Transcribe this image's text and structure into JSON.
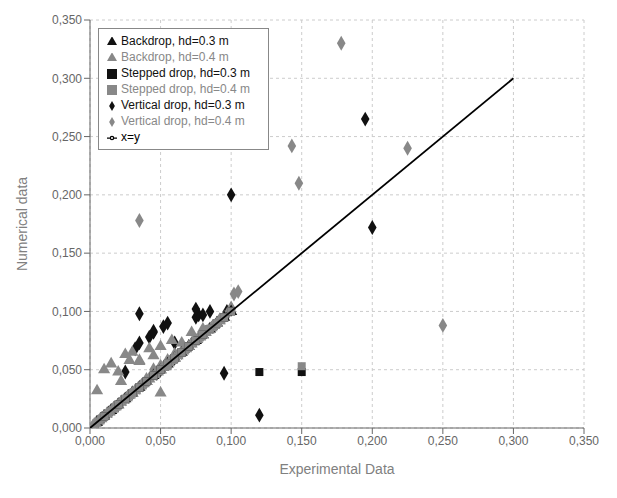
{
  "chart_data": {
    "type": "scatter",
    "xlabel": "Experimental Data",
    "ylabel": "Numerical data",
    "xlim": [
      0,
      0.35
    ],
    "ylim": [
      0,
      0.35
    ],
    "xticks": [
      {
        "value": 0.0,
        "label": "0,000"
      },
      {
        "value": 0.05,
        "label": "0,050"
      },
      {
        "value": 0.1,
        "label": "0,100"
      },
      {
        "value": 0.15,
        "label": "0,150"
      },
      {
        "value": 0.2,
        "label": "0,200"
      },
      {
        "value": 0.25,
        "label": "0,250"
      },
      {
        "value": 0.3,
        "label": "0,300"
      },
      {
        "value": 0.35,
        "label": "0,350"
      }
    ],
    "yticks": [
      {
        "value": 0.0,
        "label": "0,000"
      },
      {
        "value": 0.05,
        "label": "0,050"
      },
      {
        "value": 0.1,
        "label": "0,100"
      },
      {
        "value": 0.15,
        "label": "0,150"
      },
      {
        "value": 0.2,
        "label": "0,200"
      },
      {
        "value": 0.25,
        "label": "0,250"
      },
      {
        "value": 0.3,
        "label": "0,300"
      },
      {
        "value": 0.35,
        "label": "0,350"
      }
    ],
    "grid": true,
    "legend": "upper left",
    "series": [
      {
        "name": "Vertical drop, hd=0.3 m",
        "type": "scatter",
        "marker": "diamond",
        "color": "#111111",
        "x": [
          0.005,
          0.008,
          0.01,
          0.013,
          0.015,
          0.017,
          0.02,
          0.022,
          0.025,
          0.027,
          0.03,
          0.032,
          0.035,
          0.037,
          0.04,
          0.042,
          0.045,
          0.047,
          0.05,
          0.052,
          0.055,
          0.057,
          0.06,
          0.062,
          0.065,
          0.067,
          0.07,
          0.072,
          0.075,
          0.077,
          0.08,
          0.082,
          0.085,
          0.087,
          0.09,
          0.092,
          0.095,
          0.097,
          0.1,
          0.035,
          0.045,
          0.06,
          0.075,
          0.1,
          0.12,
          0.195,
          0.2
        ],
        "values": [
          0.005,
          0.008,
          0.01,
          0.013,
          0.015,
          0.017,
          0.02,
          0.022,
          0.048,
          0.027,
          0.03,
          0.068,
          0.073,
          0.037,
          0.04,
          0.078,
          0.082,
          0.047,
          0.05,
          0.087,
          0.09,
          0.057,
          0.06,
          0.062,
          0.065,
          0.067,
          0.07,
          0.072,
          0.095,
          0.097,
          0.097,
          0.082,
          0.1,
          0.087,
          0.09,
          0.092,
          0.047,
          0.1,
          0.2,
          0.098,
          0.083,
          0.073,
          0.102,
          0.102,
          0.011,
          0.265,
          0.172
        ]
      },
      {
        "name": "Vertical drop, hd=0.4 m",
        "type": "scatter",
        "marker": "diamond",
        "color": "#888888",
        "x": [
          0.003,
          0.005,
          0.007,
          0.01,
          0.012,
          0.015,
          0.017,
          0.02,
          0.022,
          0.025,
          0.027,
          0.03,
          0.032,
          0.035,
          0.037,
          0.04,
          0.042,
          0.045,
          0.047,
          0.05,
          0.052,
          0.055,
          0.057,
          0.06,
          0.062,
          0.065,
          0.067,
          0.07,
          0.072,
          0.075,
          0.077,
          0.08,
          0.082,
          0.085,
          0.087,
          0.09,
          0.092,
          0.095,
          0.097,
          0.1,
          0.102,
          0.105,
          0.035,
          0.148,
          0.143,
          0.178,
          0.225,
          0.25
        ],
        "values": [
          0.003,
          0.005,
          0.007,
          0.01,
          0.012,
          0.015,
          0.017,
          0.02,
          0.022,
          0.025,
          0.027,
          0.03,
          0.032,
          0.035,
          0.037,
          0.04,
          0.042,
          0.05,
          0.047,
          0.053,
          0.052,
          0.058,
          0.057,
          0.063,
          0.062,
          0.065,
          0.067,
          0.07,
          0.072,
          0.075,
          0.077,
          0.08,
          0.082,
          0.085,
          0.087,
          0.09,
          0.093,
          0.095,
          0.097,
          0.103,
          0.115,
          0.117,
          0.178,
          0.21,
          0.242,
          0.33,
          0.24,
          0.088
        ]
      },
      {
        "name": "Backdrop, hd=0.3 m",
        "type": "scatter",
        "marker": "triangle",
        "color": "#111111",
        "x": [
          0.005,
          0.01,
          0.015,
          0.02,
          0.025,
          0.03,
          0.035,
          0.04,
          0.045,
          0.05,
          0.055,
          0.06,
          0.065,
          0.07,
          0.075,
          0.08,
          0.085,
          0.09,
          0.095,
          0.1
        ],
        "values": [
          0.005,
          0.01,
          0.015,
          0.02,
          0.025,
          0.03,
          0.035,
          0.04,
          0.045,
          0.05,
          0.055,
          0.06,
          0.065,
          0.07,
          0.075,
          0.08,
          0.085,
          0.09,
          0.095,
          0.1
        ]
      },
      {
        "name": "Backdrop, hd=0.4 m",
        "type": "scatter",
        "marker": "triangle",
        "color": "#888888",
        "x": [
          0.002,
          0.004,
          0.006,
          0.008,
          0.01,
          0.012,
          0.014,
          0.016,
          0.018,
          0.02,
          0.022,
          0.024,
          0.026,
          0.028,
          0.03,
          0.032,
          0.034,
          0.036,
          0.038,
          0.04,
          0.042,
          0.044,
          0.046,
          0.048,
          0.05,
          0.052,
          0.054,
          0.056,
          0.058,
          0.06,
          0.062,
          0.064,
          0.066,
          0.068,
          0.07,
          0.072,
          0.074,
          0.076,
          0.078,
          0.08,
          0.082,
          0.084,
          0.086,
          0.088,
          0.09,
          0.092,
          0.094,
          0.005,
          0.01,
          0.015,
          0.02,
          0.025,
          0.03,
          0.035,
          0.04,
          0.045,
          0.05,
          0.022,
          0.028,
          0.035,
          0.042,
          0.05,
          0.058,
          0.065,
          0.072,
          0.08
        ],
        "values": [
          0.002,
          0.004,
          0.006,
          0.008,
          0.01,
          0.012,
          0.014,
          0.016,
          0.018,
          0.02,
          0.022,
          0.024,
          0.026,
          0.028,
          0.03,
          0.032,
          0.034,
          0.036,
          0.038,
          0.04,
          0.042,
          0.044,
          0.046,
          0.048,
          0.05,
          0.052,
          0.054,
          0.056,
          0.058,
          0.06,
          0.062,
          0.064,
          0.066,
          0.068,
          0.07,
          0.072,
          0.074,
          0.076,
          0.078,
          0.08,
          0.082,
          0.084,
          0.086,
          0.088,
          0.09,
          0.092,
          0.094,
          0.032,
          0.05,
          0.055,
          0.048,
          0.063,
          0.065,
          0.057,
          0.042,
          0.062,
          0.03,
          0.04,
          0.058,
          0.058,
          0.068,
          0.07,
          0.075,
          0.073,
          0.082,
          0.085
        ]
      },
      {
        "name": "Stepped drop, hd=0.3 m",
        "type": "scatter",
        "marker": "square",
        "color": "#111111",
        "x": [
          0.01,
          0.02,
          0.025,
          0.03,
          0.035,
          0.04,
          0.045,
          0.05,
          0.055,
          0.06,
          0.065,
          0.07,
          0.075,
          0.08,
          0.085,
          0.09,
          0.095,
          0.1,
          0.12,
          0.15
        ],
        "values": [
          0.01,
          0.02,
          0.025,
          0.03,
          0.035,
          0.04,
          0.045,
          0.05,
          0.055,
          0.06,
          0.065,
          0.07,
          0.075,
          0.08,
          0.085,
          0.09,
          0.095,
          0.1,
          0.048,
          0.048
        ]
      },
      {
        "name": "Stepped drop, hd=0.4 m",
        "type": "scatter",
        "marker": "square",
        "color": "#888888",
        "x": [
          0.01,
          0.02,
          0.025,
          0.03,
          0.035,
          0.04,
          0.045,
          0.05,
          0.055,
          0.06,
          0.065,
          0.07,
          0.075,
          0.08,
          0.085,
          0.09,
          0.095,
          0.1,
          0.055,
          0.15
        ],
        "values": [
          0.01,
          0.02,
          0.025,
          0.03,
          0.035,
          0.04,
          0.045,
          0.05,
          0.055,
          0.06,
          0.065,
          0.07,
          0.075,
          0.08,
          0.085,
          0.09,
          0.095,
          0.1,
          0.053,
          0.053
        ]
      },
      {
        "name": "x=y",
        "type": "line",
        "line_style": "solid",
        "color": "#000000",
        "x": [
          0,
          0.3
        ],
        "values": [
          0,
          0.3
        ]
      }
    ]
  }
}
